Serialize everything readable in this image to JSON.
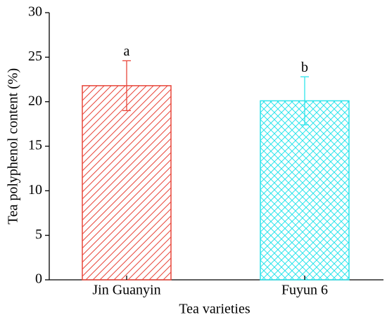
{
  "chart_data": {
    "type": "bar",
    "ylabel": "Tea polyphenol content (%)",
    "xlabel": "Tea varieties",
    "categories": [
      "Jin Guanyin",
      "Fuyun 6"
    ],
    "values": [
      21.8,
      20.1
    ],
    "errors": [
      2.8,
      2.7
    ],
    "annotations": [
      "a",
      "b"
    ],
    "colors": [
      "#e8463a",
      "#2ee4ec"
    ],
    "hatches": [
      "diagonal",
      "cross"
    ],
    "ylim": [
      0,
      30
    ],
    "yticks": [
      0,
      5,
      10,
      15,
      20,
      25,
      30
    ]
  }
}
